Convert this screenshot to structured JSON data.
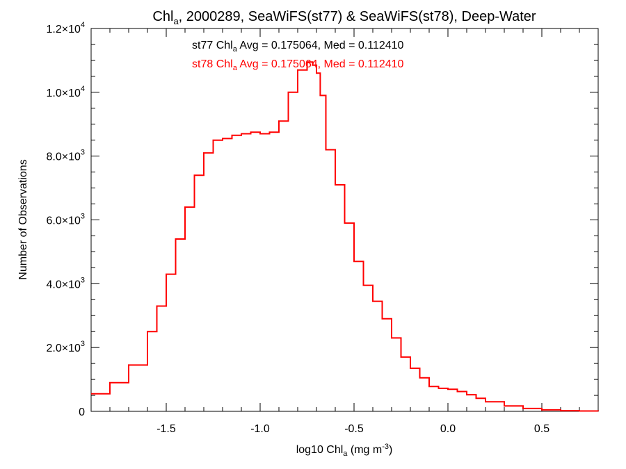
{
  "chart_data": {
    "type": "line",
    "title": {
      "prefix": "Chl",
      "sub": "a",
      "suffix": ", 2000289, SeaWiFS(st77) & SeaWiFS(st78), Deep-Water"
    },
    "xlabel": {
      "prefix": "log10 Chl",
      "sub": "a",
      "middle": " (mg m",
      "sup": "-3",
      "suffix": ")"
    },
    "ylabel": "Number of Observations",
    "xlim": [
      -1.9,
      0.8
    ],
    "ylim": [
      0,
      12000
    ],
    "x_ticks": [
      {
        "value": -1.5,
        "label": "-1.5"
      },
      {
        "value": -1.0,
        "label": "-1.0"
      },
      {
        "value": -0.5,
        "label": "-0.5"
      },
      {
        "value": 0.0,
        "label": "0.0"
      },
      {
        "value": 0.5,
        "label": "0.5"
      }
    ],
    "y_ticks": [
      {
        "value": 0,
        "mant": "0",
        "exp": ""
      },
      {
        "value": 2000,
        "mant": "2.0×10",
        "exp": "3"
      },
      {
        "value": 4000,
        "mant": "4.0×10",
        "exp": "3"
      },
      {
        "value": 6000,
        "mant": "6.0×10",
        "exp": "3"
      },
      {
        "value": 8000,
        "mant": "8.0×10",
        "exp": "3"
      },
      {
        "value": 10000,
        "mant": "1.0×10",
        "exp": "4"
      },
      {
        "value": 12000,
        "mant": "1.2×10",
        "exp": "4"
      }
    ],
    "annotations": [
      {
        "prefix": "st77 Chl",
        "sub": "a",
        "suffix": " Avg = 0.175064, Med = 0.112410",
        "color": "#000000"
      },
      {
        "prefix": "st78 Chl",
        "sub": "a",
        "suffix": " Avg = 0.175064, Med = 0.112410",
        "color": "#ff0000"
      }
    ],
    "series": [
      {
        "color": "#ff0000",
        "x": [
          -1.9,
          -1.8,
          -1.7,
          -1.6,
          -1.55,
          -1.5,
          -1.45,
          -1.4,
          -1.35,
          -1.3,
          -1.25,
          -1.2,
          -1.15,
          -1.1,
          -1.05,
          -1.0,
          -0.95,
          -0.9,
          -0.85,
          -0.8,
          -0.75,
          -0.72,
          -0.7,
          -0.68,
          -0.65,
          -0.6,
          -0.55,
          -0.5,
          -0.45,
          -0.4,
          -0.35,
          -0.3,
          -0.25,
          -0.2,
          -0.15,
          -0.1,
          -0.05,
          0.0,
          0.05,
          0.1,
          0.15,
          0.2,
          0.3,
          0.4,
          0.5,
          0.6,
          0.7,
          0.8
        ],
        "y": [
          550,
          900,
          1450,
          2500,
          3300,
          4300,
          5400,
          6400,
          7400,
          8100,
          8500,
          8550,
          8650,
          8700,
          8750,
          8700,
          8750,
          9100,
          10000,
          10700,
          10950,
          10850,
          10600,
          9900,
          8200,
          7100,
          5900,
          4700,
          3950,
          3450,
          2900,
          2300,
          1700,
          1350,
          1050,
          780,
          720,
          690,
          620,
          520,
          410,
          300,
          170,
          90,
          45,
          20,
          10,
          5
        ]
      }
    ]
  }
}
